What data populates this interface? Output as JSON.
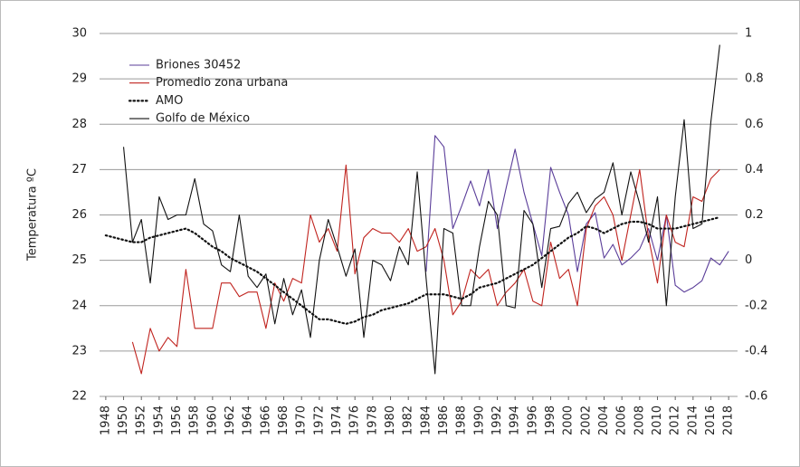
{
  "chart_data": {
    "type": "line",
    "y_label": "Temperatura ºC",
    "x": [
      1948,
      1949,
      1950,
      1951,
      1952,
      1953,
      1954,
      1955,
      1956,
      1957,
      1958,
      1959,
      1960,
      1961,
      1962,
      1963,
      1964,
      1965,
      1966,
      1967,
      1968,
      1969,
      1970,
      1971,
      1972,
      1973,
      1974,
      1975,
      1976,
      1977,
      1978,
      1979,
      1980,
      1981,
      1982,
      1983,
      1984,
      1985,
      1986,
      1987,
      1988,
      1989,
      1990,
      1991,
      1992,
      1993,
      1994,
      1995,
      1996,
      1997,
      1998,
      1999,
      2000,
      2001,
      2002,
      2003,
      2004,
      2005,
      2006,
      2007,
      2008,
      2009,
      2010,
      2011,
      2012,
      2013,
      2014,
      2015,
      2016,
      2017,
      2018
    ],
    "xlim": [
      1947.3,
      2019
    ],
    "xticks": [
      1948,
      1950,
      1952,
      1954,
      1956,
      1958,
      1960,
      1962,
      1964,
      1966,
      1968,
      1970,
      1972,
      1974,
      1976,
      1978,
      1980,
      1982,
      1984,
      1986,
      1988,
      1990,
      1992,
      1994,
      1996,
      1998,
      2000,
      2002,
      2004,
      2006,
      2008,
      2010,
      2012,
      2014,
      2016,
      2018
    ],
    "ylim": [
      22,
      30
    ],
    "yticks": [
      22,
      23,
      24,
      25,
      26,
      27,
      28,
      29,
      30
    ],
    "y2lim": [
      -0.6,
      1
    ],
    "y2ticks": [
      -0.6,
      -0.4,
      -0.2,
      0,
      0.2,
      0.4,
      0.6,
      0.8,
      1
    ],
    "grid": true,
    "legend": "upper left",
    "series": [
      {
        "name": "Briones 30452",
        "color": "#5a3d99",
        "style": "solid",
        "values": [
          null,
          null,
          null,
          null,
          null,
          null,
          null,
          null,
          null,
          null,
          null,
          null,
          null,
          null,
          null,
          null,
          null,
          null,
          null,
          null,
          null,
          null,
          null,
          null,
          null,
          null,
          null,
          null,
          null,
          null,
          null,
          null,
          null,
          null,
          null,
          null,
          24.75,
          27.75,
          27.5,
          25.7,
          26.2,
          26.75,
          26.2,
          27.0,
          25.7,
          26.6,
          27.45,
          26.5,
          25.8,
          25.1,
          27.05,
          26.5,
          26.0,
          24.75,
          25.8,
          26.05,
          25.05,
          25.35,
          24.9,
          25.05,
          25.25,
          25.7,
          25.0,
          26.0,
          24.45,
          24.3,
          24.4,
          24.55,
          25.05,
          24.9,
          25.2
        ]
      },
      {
        "name": "Promedio zona urbana",
        "color": "#c0231e",
        "style": "solid",
        "values": [
          null,
          null,
          null,
          23.2,
          22.5,
          23.5,
          23.0,
          23.3,
          23.1,
          24.8,
          23.5,
          23.5,
          23.5,
          24.5,
          24.5,
          24.2,
          24.3,
          24.3,
          23.5,
          24.5,
          24.1,
          24.6,
          24.5,
          26.0,
          25.4,
          25.7,
          25.2,
          27.1,
          24.7,
          25.5,
          25.7,
          25.6,
          25.6,
          25.4,
          25.7,
          25.2,
          25.3,
          25.7,
          25.0,
          23.8,
          24.1,
          24.8,
          24.6,
          24.8,
          24.0,
          24.3,
          24.5,
          24.8,
          24.1,
          24.0,
          25.4,
          24.6,
          24.8,
          24.0,
          25.7,
          26.2,
          26.4,
          26.0,
          25.0,
          26.0,
          27.0,
          25.5,
          24.5,
          26.0,
          25.4,
          25.3,
          26.4,
          26.3,
          26.8,
          27.0,
          null
        ]
      },
      {
        "name": "AMO",
        "color": "#111111",
        "style": "dotted",
        "axis": "y2",
        "values": [
          0.11,
          0.1,
          0.09,
          0.08,
          0.08,
          0.1,
          0.11,
          0.12,
          0.13,
          0.14,
          0.12,
          0.09,
          0.06,
          0.04,
          0.01,
          -0.01,
          -0.03,
          -0.05,
          -0.08,
          -0.11,
          -0.14,
          -0.17,
          -0.2,
          -0.23,
          -0.26,
          -0.26,
          -0.27,
          -0.28,
          -0.27,
          -0.25,
          -0.24,
          -0.22,
          -0.21,
          -0.2,
          -0.19,
          -0.17,
          -0.15,
          -0.15,
          -0.15,
          -0.16,
          -0.17,
          -0.15,
          -0.12,
          -0.11,
          -0.1,
          -0.08,
          -0.06,
          -0.04,
          -0.02,
          0.01,
          0.04,
          0.07,
          0.1,
          0.12,
          0.15,
          0.14,
          0.12,
          0.14,
          0.16,
          0.17,
          0.17,
          0.16,
          0.14,
          0.14,
          0.14,
          0.15,
          0.16,
          0.17,
          0.18,
          0.19,
          null
        ]
      },
      {
        "name": "Golfo de México",
        "color": "#111111",
        "style": "solid",
        "axis": "y2",
        "values": [
          null,
          null,
          0.5,
          0.08,
          0.18,
          -0.1,
          0.28,
          0.18,
          0.2,
          0.2,
          0.36,
          0.16,
          0.13,
          -0.02,
          -0.05,
          0.2,
          -0.07,
          -0.12,
          -0.06,
          -0.28,
          -0.08,
          -0.24,
          -0.13,
          -0.34,
          0.0,
          0.18,
          0.06,
          -0.07,
          0.05,
          -0.34,
          0.0,
          -0.02,
          -0.09,
          0.06,
          -0.02,
          0.39,
          -0.08,
          -0.5,
          0.14,
          0.12,
          -0.2,
          -0.2,
          0.06,
          0.26,
          0.2,
          -0.2,
          -0.21,
          0.22,
          0.16,
          -0.12,
          0.14,
          0.15,
          0.25,
          0.3,
          0.21,
          0.27,
          0.3,
          0.43,
          0.2,
          0.39,
          0.25,
          0.08,
          0.28,
          -0.2,
          0.28,
          0.62,
          0.14,
          0.16,
          0.61,
          0.95,
          null
        ]
      }
    ]
  }
}
